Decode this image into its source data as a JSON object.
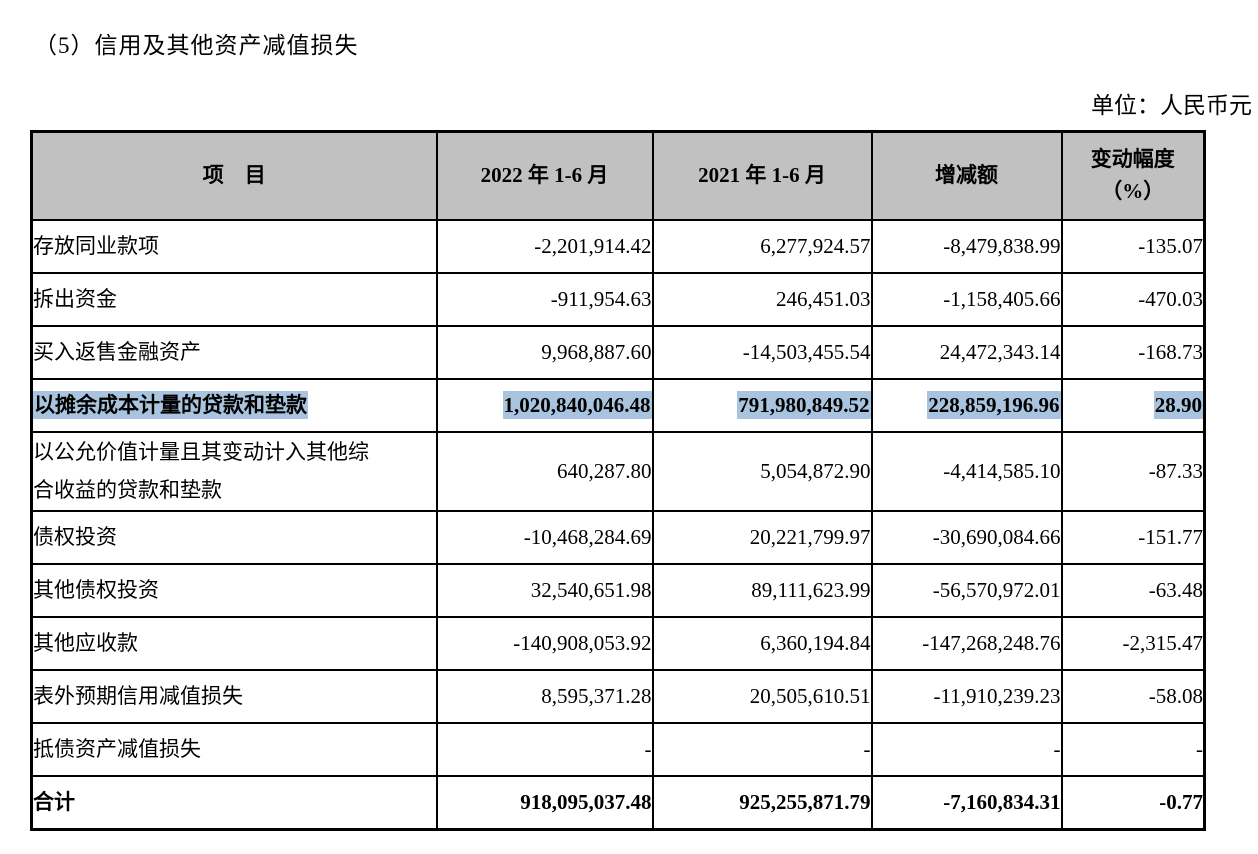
{
  "page": {
    "title": "（5）信用及其他资产减值损失",
    "unit_label": "单位：人民币元"
  },
  "colors": {
    "header_bg": "#c1c1c1",
    "highlight_bg": "#a9c4de",
    "border": "#000000",
    "text": "#000000"
  },
  "table": {
    "headers": {
      "item": "项　目",
      "period_2022": "2022 年 1-6 月",
      "period_2021": "2021 年 1-6 月",
      "change_amount": "增减额",
      "change_pct": "变动幅度\n（%）"
    },
    "rows": [
      {
        "label": "存放同业款项",
        "v2022": "-2,201,914.42",
        "v2021": "6,277,924.57",
        "change": "-8,479,838.99",
        "pct": "-135.07",
        "highlighted": false,
        "bold": false
      },
      {
        "label": "拆出资金",
        "v2022": "-911,954.63",
        "v2021": "246,451.03",
        "change": "-1,158,405.66",
        "pct": "-470.03",
        "highlighted": false,
        "bold": false
      },
      {
        "label": "买入返售金融资产",
        "v2022": "9,968,887.60",
        "v2021": "-14,503,455.54",
        "change": "24,472,343.14",
        "pct": "-168.73",
        "highlighted": false,
        "bold": false
      },
      {
        "label": "以摊余成本计量的贷款和垫款",
        "v2022": "1,020,840,046.48",
        "v2021": "791,980,849.52",
        "change": "228,859,196.96",
        "pct": "28.90",
        "highlighted": true,
        "bold": true
      },
      {
        "label": "以公允价值计量且其变动计入其他综\n合收益的贷款和垫款",
        "v2022": "640,287.80",
        "v2021": "5,054,872.90",
        "change": "-4,414,585.10",
        "pct": "-87.33",
        "highlighted": false,
        "bold": false
      },
      {
        "label": "债权投资",
        "v2022": "-10,468,284.69",
        "v2021": "20,221,799.97",
        "change": "-30,690,084.66",
        "pct": "-151.77",
        "highlighted": false,
        "bold": false
      },
      {
        "label": "其他债权投资",
        "v2022": "32,540,651.98",
        "v2021": "89,111,623.99",
        "change": "-56,570,972.01",
        "pct": "-63.48",
        "highlighted": false,
        "bold": false
      },
      {
        "label": "其他应收款",
        "v2022": "-140,908,053.92",
        "v2021": "6,360,194.84",
        "change": "-147,268,248.76",
        "pct": "-2,315.47",
        "highlighted": false,
        "bold": false
      },
      {
        "label": "表外预期信用减值损失",
        "v2022": "8,595,371.28",
        "v2021": "20,505,610.51",
        "change": "-11,910,239.23",
        "pct": "-58.08",
        "highlighted": false,
        "bold": false
      },
      {
        "label": "抵债资产减值损失",
        "v2022": "-",
        "v2021": "-",
        "change": "-",
        "pct": "-",
        "highlighted": false,
        "bold": false
      },
      {
        "label": "合计",
        "v2022": "918,095,037.48",
        "v2021": "925,255,871.79",
        "change": "-7,160,834.31",
        "pct": "-0.77",
        "highlighted": false,
        "bold": true,
        "total": true
      }
    ]
  }
}
